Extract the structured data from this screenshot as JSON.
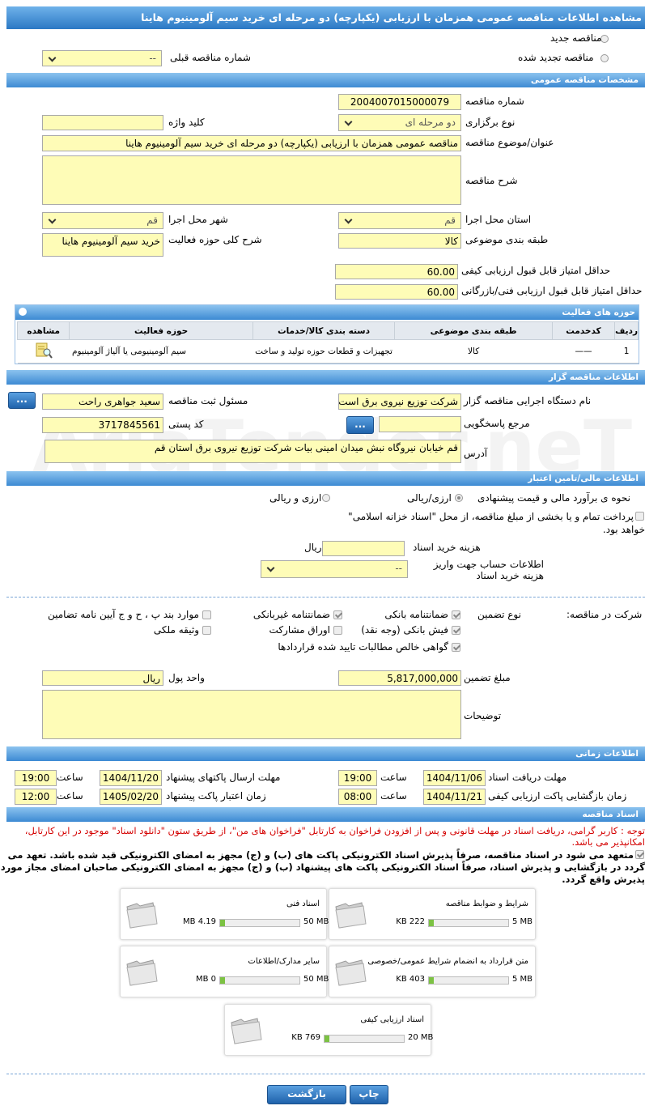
{
  "header": {
    "title": "مشاهده اطلاعات مناقصه عمومی همزمان با ارزیابی (یکپارچه) دو مرحله ای خرید سیم آلومینیوم هاینا"
  },
  "tender_type": {
    "new": "مناقصه جدید",
    "renewed": "مناقصه تجدید شده",
    "previous_number_label": "شماره مناقصه قبلی",
    "previous_number": "--"
  },
  "general": {
    "title": "مشخصات مناقصه عمومی",
    "number_label": "شماره مناقصه",
    "number": "2004007015000079",
    "holding_type_label": "نوع برگزاری",
    "holding_type": "دو مرحله ای",
    "keyword_label": "کلید واژه",
    "subject_label": "عنوان/موضوع مناقصه",
    "subject": "مناقصه عمومی همزمان با ارزیابی (یکپارچه) دو مرحله ای خرید سیم آلومینیوم هاینا",
    "description_label": "شرح مناقصه",
    "province_label": "استان محل اجرا",
    "province": "قم",
    "city_label": "شهر محل اجرا",
    "city": "قم",
    "category_label": "طبقه بندی موضوعی",
    "category": "کالا",
    "activity_desc_label": "شرح کلی حوزه فعالیت",
    "activity_desc": "خرید سیم آلومینیوم هاینا",
    "min_quality_label": "حداقل امتیاز قابل قبول ارزیابی کیفی",
    "min_quality": "60.00",
    "min_technical_label": "حداقل امتیاز قابل قبول ارزیابی فنی/بازرگانی",
    "min_technical": "60.00"
  },
  "activities": {
    "title": "حوزه های فعالیت",
    "columns": [
      "ردیف",
      "کدخدمت",
      "طبقه بندی موضوعی",
      "دسته بندی کالا/خدمات",
      "حوزه فعالیت",
      "مشاهده"
    ],
    "rows": [
      [
        1,
        "——",
        "کالا",
        "تجهیزات و قطعات حوزه تولید و ساخت",
        "سیم آلومینیومی یا آلیاژ آلومینیوم"
      ]
    ]
  },
  "organizer": {
    "title": "اطلاعات مناقصه گزار",
    "org_label": "نام دستگاه اجرایی مناقصه گزار",
    "org": "شرکت توزیع نیروی برق است",
    "registrar_label": "مسئول ثبت مناقصه",
    "registrar": "سعید جواهری راحت",
    "reference_label": "مرجع پاسخگویی",
    "postal_code_label": "کد پستی",
    "postal_code": "3717845561",
    "address_label": "آدرس",
    "address": "قم خیابان نیروگاه نبش میدان امینی بیات شرکت توزیع نیروی برق استان قم",
    "more_button": "..."
  },
  "finance": {
    "title": "اطلاعات مالی/تامین اعتبار",
    "estimate_label": "نحوه ی برآورد مالی و قیمت پیشنهادی",
    "option_currency_rial": "ارزی/ریالی",
    "option_currency_and_rial": "ارزی و ریالی",
    "treasury_note": "پرداخت تمام و یا بخشی از مبلغ مناقصه، از محل \"اسناد خزانه اسلامی\" خواهد بود.",
    "doc_fee_label": "هزینه خرید اسناد",
    "doc_fee_unit": "ریال",
    "account_label": "اطلاعات حساب جهت واریز هزینه خرید اسناد",
    "account": "--"
  },
  "guarantee": {
    "label": "تضمین شرکت در مناقصه:",
    "type_label": "نوع تضمین",
    "options": [
      {
        "label": "ضمانتنامه بانکی",
        "checked": true
      },
      {
        "label": "ضمانتنامه غیربانکی",
        "checked": true
      },
      {
        "label": "موارد بند پ ، ح و ج آیین نامه تضامین",
        "checked": false
      },
      {
        "label": "فیش بانکی (وجه نقد)",
        "checked": true
      },
      {
        "label": "اوراق مشارکت",
        "checked": false
      },
      {
        "label": "وثیقه ملکی",
        "checked": false
      },
      {
        "label": "گواهی خالص مطالبات تایید شده قراردادها",
        "checked": true
      }
    ],
    "amount_label": "مبلغ تضمین",
    "amount": "5,817,000,000",
    "currency_label": "واحد پول",
    "currency": "ریال",
    "notes_label": "توضیحات"
  },
  "schedule": {
    "title": "اطلاعات زمانی",
    "time_label": "ساعت",
    "items": [
      {
        "label": "مهلت دریافت اسناد",
        "date": "1404/11/06",
        "time": "19:00"
      },
      {
        "label": "مهلت ارسال پاکتهای پیشنهاد",
        "date": "1404/11/20",
        "time": "19:00"
      },
      {
        "label": "زمان بازگشایی پاکت ارزیابی کیفی",
        "date": "1404/11/21",
        "time": "08:00"
      },
      {
        "label": "زمان اعتبار پاکت پیشنهاد",
        "date": "1405/02/20",
        "time": "12:00"
      }
    ]
  },
  "documents": {
    "title": "اسناد مناقصه",
    "note": "توجه : کاربر گرامی، دریافت اسناد در مهلت قانونی و پس از افزودن فراخوان به کارتابل \"فراخوان های من\"، از طریق ستون \"دانلود اسناد\" موجود در این کارتابل، امکانپذیر می باشد.",
    "commitment": "متعهد می شود در اسناد مناقصه، صرفاً پذیرش اسناد الکترونیکی پاکت های (ب) و (ج) مجهز به امضای الکترونیکی قید شده باشد. تعهد می گردد در بازگشایی و پذیرش اسناد، صرفاً اسناد الکترونیکی پاکت های پیشنهاد (ب) و (ج) مجهز به امضای الکترونیکی صاحبان امضای مجاز مورد پذیرش واقع گردد.",
    "files": [
      {
        "name": "شرایط و ضوابط مناقصه",
        "size": "222 KB",
        "max": "5 MB"
      },
      {
        "name": "اسناد فنی",
        "size": "4.19 MB",
        "max": "50 MB"
      },
      {
        "name": "متن قرارداد به انضمام شرایط عمومی/خصوصی",
        "size": "403 KB",
        "max": "5 MB"
      },
      {
        "name": "سایر مدارک/اطلاعات",
        "size": "0 MB",
        "max": "50 MB"
      },
      {
        "name": "اسناد ارزیابی کیفی",
        "size": "769 KB",
        "max": "20 MB"
      }
    ]
  },
  "buttons": {
    "print": "چاپ",
    "back": "بازگشت"
  },
  "watermark": "AriaTender.neT"
}
